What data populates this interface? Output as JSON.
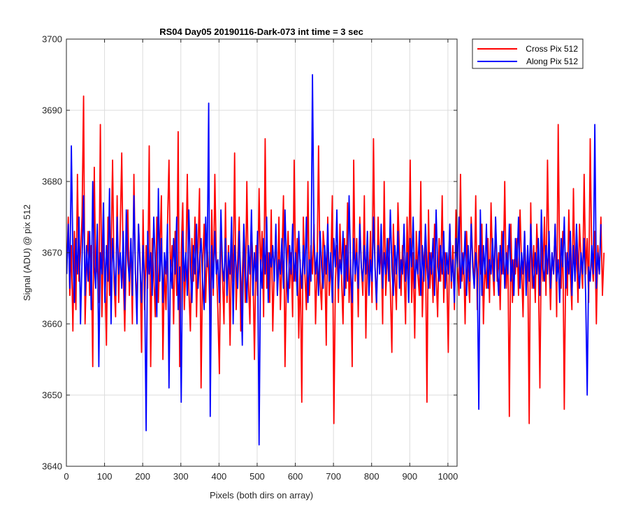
{
  "chart_data": {
    "type": "line",
    "title": "RS04 Day05 20190116-Dark-073 int time = 3 sec",
    "xlabel": "Pixels (both dirs on array)",
    "ylabel": "Signal (ADU) @ pix 512",
    "xlim": [
      0,
      1024
    ],
    "ylim": [
      3640,
      3700
    ],
    "x_ticks": [
      0,
      100,
      200,
      300,
      400,
      500,
      600,
      700,
      800,
      900,
      1000
    ],
    "y_ticks": [
      3640,
      3650,
      3660,
      3670,
      3680,
      3690,
      3700
    ],
    "grid": true,
    "legend_position": "outside-top-right",
    "x_start": 1,
    "x_step": 4,
    "series": [
      {
        "name": "Cross Pix 512",
        "color": "#ff0000",
        "values": [
          3668,
          3675,
          3664,
          3671,
          3659,
          3673,
          3662,
          3681,
          3666,
          3670,
          3675,
          3692,
          3660,
          3668,
          3673,
          3664,
          3671,
          3654,
          3682,
          3666,
          3669,
          3663,
          3688,
          3661,
          3672,
          3667,
          3657,
          3675,
          3664,
          3670,
          3683,
          3666,
          3661,
          3678,
          3663,
          3673,
          3684,
          3667,
          3659,
          3670,
          3676,
          3664,
          3672,
          3660,
          3681,
          3667,
          3663,
          3674,
          3669,
          3656,
          3676,
          3662,
          3671,
          3665,
          3685,
          3654,
          3672,
          3667,
          3661,
          3675,
          3663,
          3670,
          3678,
          3655,
          3668,
          3662,
          3674,
          3683,
          3666,
          3671,
          3660,
          3673,
          3664,
          3687,
          3654,
          3670,
          3677,
          3662,
          3668,
          3681,
          3665,
          3659,
          3672,
          3666,
          3675,
          3661,
          3670,
          3679,
          3651,
          3668,
          3674,
          3663,
          3671,
          3667,
          3660,
          3676,
          3664,
          3681,
          3669,
          3662,
          3653,
          3674,
          3667,
          3660,
          3677,
          3663,
          3671,
          3657,
          3672,
          3666,
          3684,
          3662,
          3669,
          3675,
          3659,
          3667,
          3673,
          3663,
          3680,
          3666,
          3660,
          3674,
          3668,
          3655,
          3671,
          3664,
          3679,
          3667,
          3673,
          3661,
          3686,
          3665,
          3670,
          3663,
          3676,
          3659,
          3668,
          3672,
          3664,
          3675,
          3662,
          3669,
          3678,
          3654,
          3667,
          3673,
          3665,
          3670,
          3661,
          3683,
          3666,
          3672,
          3658,
          3669,
          3649,
          3675,
          3667,
          3662,
          3680,
          3664,
          3671,
          3667,
          3674,
          3660,
          3668,
          3685,
          3666,
          3662,
          3673,
          3670,
          3657,
          3675,
          3664,
          3668,
          3678,
          3646,
          3666,
          3671,
          3663,
          3674,
          3667,
          3660,
          3672,
          3665,
          3677,
          3663,
          3669,
          3654,
          3683,
          3666,
          3672,
          3661,
          3675,
          3668,
          3664,
          3678,
          3658,
          3670,
          3666,
          3673,
          3663,
          3686,
          3668,
          3662,
          3675,
          3667,
          3671,
          3660,
          3680,
          3664,
          3669,
          3672,
          3665,
          3656,
          3674,
          3667,
          3662,
          3677,
          3670,
          3664,
          3671,
          3668,
          3660,
          3675,
          3666,
          3683,
          3663,
          3670,
          3658,
          3673,
          3667,
          3664,
          3680,
          3661,
          3669,
          3672,
          3649,
          3676,
          3665,
          3670,
          3663,
          3674,
          3667,
          3661,
          3672,
          3666,
          3678,
          3663,
          3670,
          3667,
          3656,
          3674,
          3665,
          3671,
          3662,
          3676,
          3668,
          3664,
          3681,
          3666,
          3670,
          3660,
          3673,
          3667,
          3663,
          3675,
          3669,
          3665,
          3678,
          3662,
          3671,
          3667,
          3674,
          3660,
          3669,
          3665,
          3672,
          3663,
          3677,
          3668,
          3664,
          3675,
          3666,
          3670,
          3662,
          3673,
          3667,
          3680,
          3665,
          3671,
          3647,
          3674,
          3663,
          3669,
          3667,
          3672,
          3664,
          3676,
          3668,
          3661,
          3673,
          3666,
          3670,
          3646,
          3677,
          3665,
          3671,
          3663,
          3674,
          3668,
          3651,
          3672,
          3666,
          3675,
          3664,
          3683,
          3669,
          3662,
          3670,
          3667,
          3674,
          3661,
          3688,
          3668,
          3665,
          3673,
          3648,
          3670,
          3664,
          3676,
          3667,
          3662,
          3679,
          3666,
          3671,
          3663,
          3674,
          3669,
          3665,
          3681,
          3667,
          3672,
          3663,
          3686,
          3669,
          3666,
          3673,
          3660,
          3671,
          3667,
          3675,
          3664,
          3670
        ]
      },
      {
        "name": "Along Pix 512",
        "color": "#0000ff",
        "values": [
          3667,
          3674,
          3665,
          3685,
          3670,
          3663,
          3672,
          3667,
          3675,
          3660,
          3669,
          3678,
          3664,
          3671,
          3666,
          3673,
          3662,
          3680,
          3668,
          3665,
          3674,
          3654,
          3670,
          3667,
          3677,
          3663,
          3671,
          3666,
          3679,
          3660,
          3672,
          3668,
          3664,
          3675,
          3667,
          3670,
          3665,
          3673,
          3662,
          3676,
          3669,
          3666,
          3672,
          3664,
          3678,
          3667,
          3660,
          3674,
          3668,
          3663,
          3671,
          3666,
          3645,
          3673,
          3667,
          3670,
          3664,
          3675,
          3668,
          3661,
          3679,
          3666,
          3672,
          3663,
          3670,
          3667,
          3674,
          3651,
          3669,
          3665,
          3672,
          3667,
          3675,
          3662,
          3668,
          3649,
          3673,
          3666,
          3670,
          3664,
          3676,
          3668,
          3663,
          3671,
          3667,
          3674,
          3665,
          3669,
          3672,
          3666,
          3662,
          3675,
          3668,
          3691,
          3647,
          3671,
          3665,
          3673,
          3667,
          3669,
          3663,
          3676,
          3668,
          3666,
          3672,
          3664,
          3670,
          3667,
          3675,
          3660,
          3671,
          3668,
          3665,
          3673,
          3666,
          3657,
          3674,
          3668,
          3663,
          3671,
          3667,
          3676,
          3664,
          3670,
          3666,
          3673,
          3643,
          3669,
          3665,
          3672,
          3667,
          3675,
          3663,
          3670,
          3668,
          3671,
          3666,
          3674,
          3664,
          3669,
          3667,
          3672,
          3665,
          3676,
          3668,
          3663,
          3671,
          3667,
          3674,
          3666,
          3670,
          3664,
          3673,
          3668,
          3665,
          3671,
          3667,
          3675,
          3663,
          3669,
          3666,
          3695,
          3672,
          3667,
          3670,
          3664,
          3673,
          3668,
          3665,
          3671,
          3667,
          3674,
          3666,
          3670,
          3663,
          3672,
          3668,
          3676,
          3665,
          3669,
          3667,
          3673,
          3664,
          3671,
          3666,
          3678,
          3668,
          3663,
          3672,
          3667,
          3670,
          3665,
          3674,
          3668,
          3666,
          3671,
          3667,
          3673,
          3664,
          3669,
          3666,
          3675,
          3668,
          3663,
          3671,
          3667,
          3674,
          3665,
          3670,
          3667,
          3672,
          3666,
          3676,
          3668,
          3664,
          3671,
          3667,
          3673,
          3665,
          3669,
          3667,
          3674,
          3666,
          3670,
          3663,
          3672,
          3668,
          3675,
          3665,
          3669,
          3667,
          3673,
          3664,
          3671,
          3666,
          3674,
          3668,
          3665,
          3670,
          3667,
          3672,
          3664,
          3676,
          3668,
          3666,
          3671,
          3667,
          3673,
          3665,
          3670,
          3667,
          3674,
          3666,
          3669,
          3663,
          3672,
          3668,
          3675,
          3665,
          3670,
          3667,
          3673,
          3664,
          3671,
          3666,
          3674,
          3668,
          3665,
          3670,
          3667,
          3648,
          3676,
          3664,
          3671,
          3667,
          3674,
          3665,
          3669,
          3667,
          3672,
          3666,
          3675,
          3668,
          3664,
          3671,
          3667,
          3673,
          3665,
          3670,
          3667,
          3674,
          3666,
          3669,
          3664,
          3672,
          3668,
          3675,
          3665,
          3670,
          3667,
          3673,
          3664,
          3671,
          3666,
          3674,
          3668,
          3665,
          3670,
          3667,
          3672,
          3664,
          3676,
          3668,
          3666,
          3671,
          3667,
          3673,
          3665,
          3670,
          3667,
          3674,
          3666,
          3669,
          3663,
          3672,
          3668,
          3675,
          3665,
          3670,
          3667,
          3673,
          3664,
          3671,
          3666,
          3674,
          3668,
          3665,
          3670,
          3667,
          3672,
          3664,
          3650,
          3668,
          3666,
          3671,
          3667,
          3688,
          3665,
          3670,
          3667,
          3674
        ]
      }
    ]
  }
}
